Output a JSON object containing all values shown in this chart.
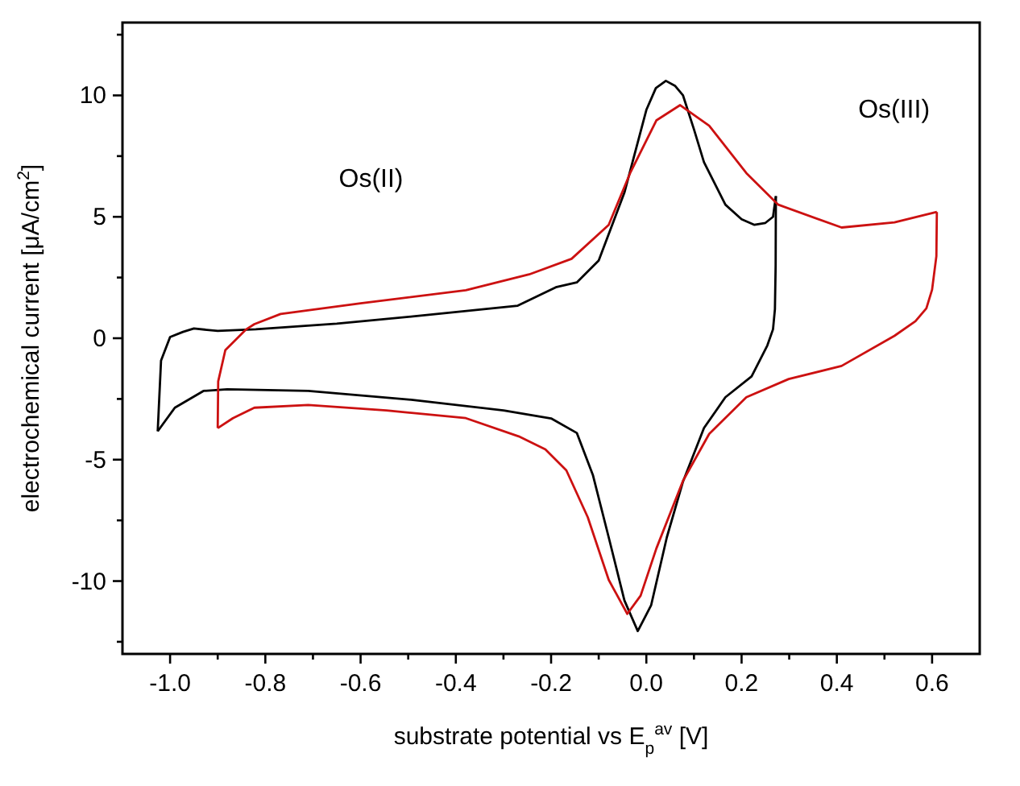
{
  "chart_data": {
    "type": "line",
    "xlabel": "substrate potential vs E$_{p}$$^{av}$ [V]",
    "ylabel": "electrochemical current [μA/cm$^{2}$]",
    "xlim": [
      -1.1,
      0.7
    ],
    "ylim": [
      -13,
      13
    ],
    "xticks": [
      {
        "value": -1.0,
        "label": "-1.0"
      },
      {
        "value": -0.9,
        "label": null
      },
      {
        "value": -0.8,
        "label": "-0.8"
      },
      {
        "value": -0.7,
        "label": null
      },
      {
        "value": -0.6,
        "label": "-0.6"
      },
      {
        "value": -0.5,
        "label": null
      },
      {
        "value": -0.4,
        "label": "-0.4"
      },
      {
        "value": -0.3,
        "label": null
      },
      {
        "value": -0.2,
        "label": "-0.2"
      },
      {
        "value": -0.1,
        "label": null
      },
      {
        "value": 0.0,
        "label": "0.0"
      },
      {
        "value": 0.1,
        "label": null
      },
      {
        "value": 0.2,
        "label": "0.2"
      },
      {
        "value": 0.3,
        "label": null
      },
      {
        "value": 0.4,
        "label": "0.4"
      },
      {
        "value": 0.5,
        "label": null
      },
      {
        "value": 0.6,
        "label": "0.6"
      }
    ],
    "yticks": [
      {
        "value": -12.5,
        "label": null
      },
      -10,
      {
        "value": -7.5,
        "label": null
      },
      -5,
      {
        "value": -2.5,
        "label": null
      },
      0,
      {
        "value": 2.5,
        "label": null
      },
      5,
      {
        "value": 7.5,
        "label": null
      },
      10,
      {
        "value": 12.5,
        "label": null
      }
    ],
    "annotations": [
      "Os(II)",
      "Os(III)"
    ],
    "grid": false,
    "marker": "none",
    "line_style": "solid",
    "series": [
      {
        "color": "#000000",
        "x": [
          -1.026,
          -1.019,
          -1.0,
          -0.973,
          -0.95,
          -0.9,
          -0.82,
          -0.65,
          -0.49,
          -0.27,
          -0.19,
          -0.146,
          -0.1,
          -0.046,
          0.0,
          0.02,
          0.041,
          0.06,
          0.077,
          0.1,
          0.121,
          0.166,
          0.2,
          0.227,
          0.25,
          0.266,
          0.272
        ],
        "values": [
          -3.83,
          -0.92,
          0.05,
          0.26,
          0.4,
          0.3,
          0.37,
          0.6,
          0.9,
          1.34,
          2.1,
          2.3,
          3.2,
          6.0,
          9.4,
          10.3,
          10.6,
          10.4,
          10.0,
          8.6,
          7.25,
          5.5,
          4.9,
          4.67,
          4.75,
          5.0,
          5.85
        ]
      },
      {
        "color": "#000000",
        "x": [
          0.272,
          0.2715,
          0.27,
          0.266,
          0.254,
          0.221,
          0.166,
          0.121,
          0.077,
          0.043,
          0.01,
          -0.018,
          -0.046,
          -0.079,
          -0.112,
          -0.146,
          -0.2,
          -0.3,
          -0.49,
          -0.71,
          -0.88,
          -0.93,
          -0.99,
          -1.026
        ],
        "values": [
          5.85,
          3.0,
          1.2,
          0.37,
          -0.3,
          -1.57,
          -2.43,
          -3.7,
          -5.9,
          -8.2,
          -11.0,
          -12.06,
          -10.8,
          -8.2,
          -5.65,
          -3.9,
          -3.3,
          -2.97,
          -2.54,
          -2.17,
          -2.1,
          -2.17,
          -2.86,
          -3.83
        ]
      },
      {
        "color": "#cc1111",
        "x": [
          -0.9,
          -0.899,
          -0.884,
          -0.84,
          -0.823,
          -0.768,
          -0.6,
          -0.379,
          -0.246,
          -0.157,
          -0.079,
          -0.034,
          0.021,
          0.071,
          0.132,
          0.21,
          0.277,
          0.41,
          0.521,
          0.61
        ],
        "values": [
          -3.7,
          -1.78,
          -0.49,
          0.37,
          0.58,
          1.0,
          1.44,
          1.98,
          2.63,
          3.27,
          4.67,
          6.8,
          8.97,
          9.6,
          8.75,
          6.8,
          5.5,
          4.56,
          4.77,
          5.2
        ]
      },
      {
        "color": "#cc1111",
        "x": [
          0.61,
          0.609,
          0.6,
          0.588,
          0.565,
          0.521,
          0.41,
          0.299,
          0.21,
          0.132,
          0.077,
          0.021,
          -0.012,
          -0.04,
          -0.079,
          -0.123,
          -0.168,
          -0.212,
          -0.268,
          -0.379,
          -0.546,
          -0.71,
          -0.823,
          -0.868,
          -0.9
        ],
        "values": [
          5.2,
          3.38,
          2.0,
          1.23,
          0.7,
          0.1,
          -1.14,
          -1.68,
          -2.43,
          -3.94,
          -5.87,
          -8.66,
          -10.6,
          -11.35,
          -9.95,
          -7.37,
          -5.44,
          -4.58,
          -4.04,
          -3.29,
          -2.97,
          -2.75,
          -2.86,
          -3.29,
          -3.7
        ]
      }
    ]
  }
}
